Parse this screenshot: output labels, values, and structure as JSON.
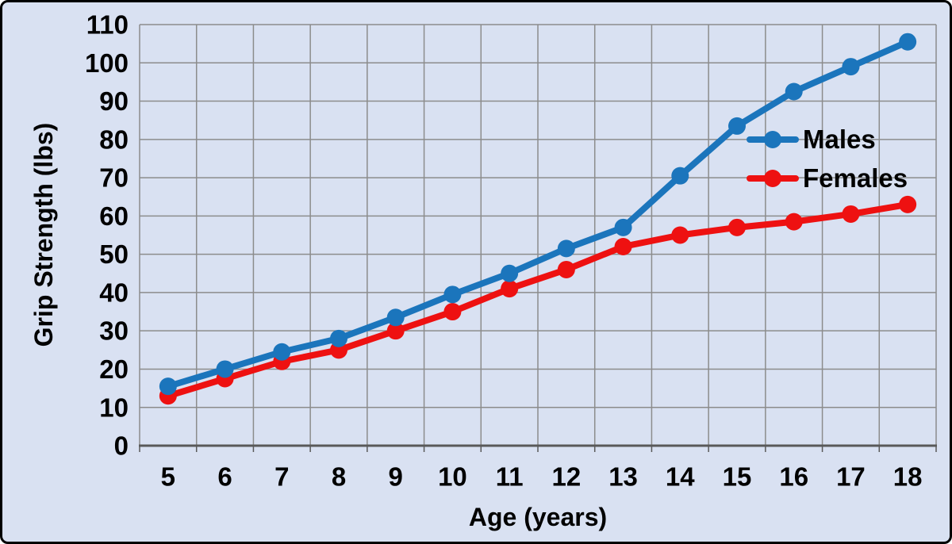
{
  "chart_data": {
    "type": "line",
    "title": "",
    "xlabel": "Age (years)",
    "ylabel": "Grip Strength (lbs)",
    "categories": [
      "5",
      "6",
      "7",
      "8",
      "9",
      "10",
      "11",
      "12",
      "13",
      "14",
      "15",
      "16",
      "17",
      "18"
    ],
    "series": [
      {
        "name": "Males",
        "color": "#1B75BC",
        "values": [
          15.5,
          20,
          24.5,
          28,
          33.5,
          39.5,
          45,
          51.5,
          57,
          70.5,
          83.5,
          92.5,
          99,
          105.5
        ]
      },
      {
        "name": "Females",
        "color": "#EE1111",
        "values": [
          13,
          17.5,
          22,
          25,
          30,
          35,
          41,
          46,
          52,
          55,
          57,
          58.5,
          60.5,
          63
        ]
      }
    ],
    "ylim": [
      0,
      110
    ],
    "y_ticks": [
      "0",
      "10",
      "20",
      "30",
      "40",
      "50",
      "60",
      "70",
      "80",
      "90",
      "100",
      "110"
    ],
    "y_tick_step": 10,
    "grid": true,
    "legend_position": "inside-right",
    "background_color": "#D9E1F2",
    "gridline_color": "#8C8C8C",
    "axis_line_color": "#595959",
    "border_color": "#000000",
    "text_color": "#000000"
  }
}
